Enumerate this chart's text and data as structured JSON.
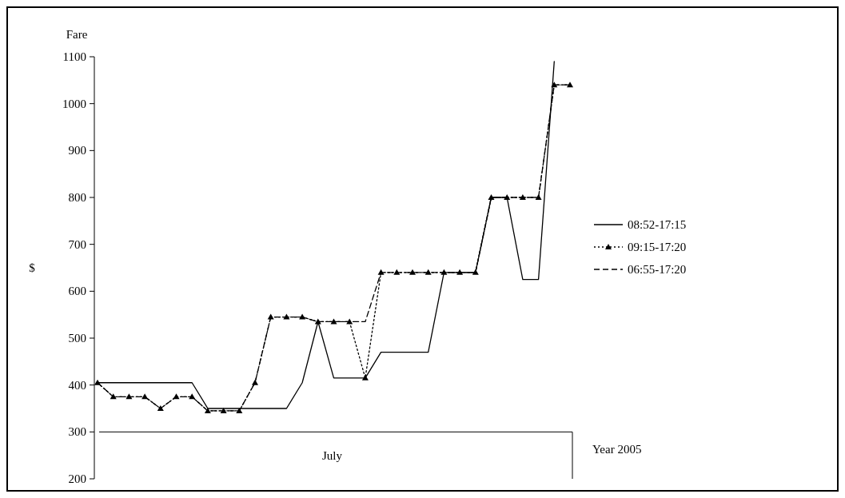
{
  "chart_data": {
    "type": "line",
    "title": "Fare",
    "ylabel": "$",
    "categories": [
      null,
      null,
      null,
      null,
      null,
      null,
      null,
      null,
      null,
      null,
      null,
      null,
      null,
      null,
      null,
      null,
      null,
      null,
      null,
      null,
      null,
      null,
      null,
      null,
      null,
      null,
      null,
      null,
      null,
      null,
      null
    ],
    "ylim": [
      200,
      1100
    ],
    "yticks": [
      200,
      300,
      400,
      500,
      600,
      700,
      800,
      900,
      1000,
      1100
    ],
    "legend": "right",
    "annotations": [
      "July",
      "Year 2005"
    ],
    "series": [
      {
        "name": "08:52-17:15",
        "color": "#000000",
        "line_style": "solid",
        "marker": "none",
        "values": [
          405,
          405,
          405,
          405,
          405,
          405,
          405,
          350,
          350,
          350,
          350,
          350,
          350,
          405,
          535,
          415,
          415,
          415,
          470,
          470,
          470,
          470,
          640,
          640,
          640,
          800,
          800,
          625,
          625,
          1090,
          null
        ]
      },
      {
        "name": "09:15-17:20",
        "color": "#000000",
        "line_style": "dotted",
        "marker": "triangle",
        "values": [
          405,
          375,
          375,
          375,
          350,
          375,
          375,
          345,
          345,
          345,
          405,
          545,
          545,
          545,
          535,
          535,
          535,
          415,
          640,
          640,
          640,
          640,
          640,
          640,
          640,
          800,
          800,
          800,
          800,
          1040,
          1040
        ]
      },
      {
        "name": "06:55-17:20",
        "color": "#000000",
        "line_style": "dashed",
        "marker": "none",
        "values": [
          405,
          375,
          375,
          375,
          350,
          375,
          375,
          345,
          345,
          345,
          405,
          545,
          545,
          545,
          535,
          535,
          535,
          535,
          640,
          640,
          640,
          640,
          640,
          640,
          640,
          800,
          800,
          800,
          800,
          1040,
          1040
        ]
      }
    ]
  }
}
